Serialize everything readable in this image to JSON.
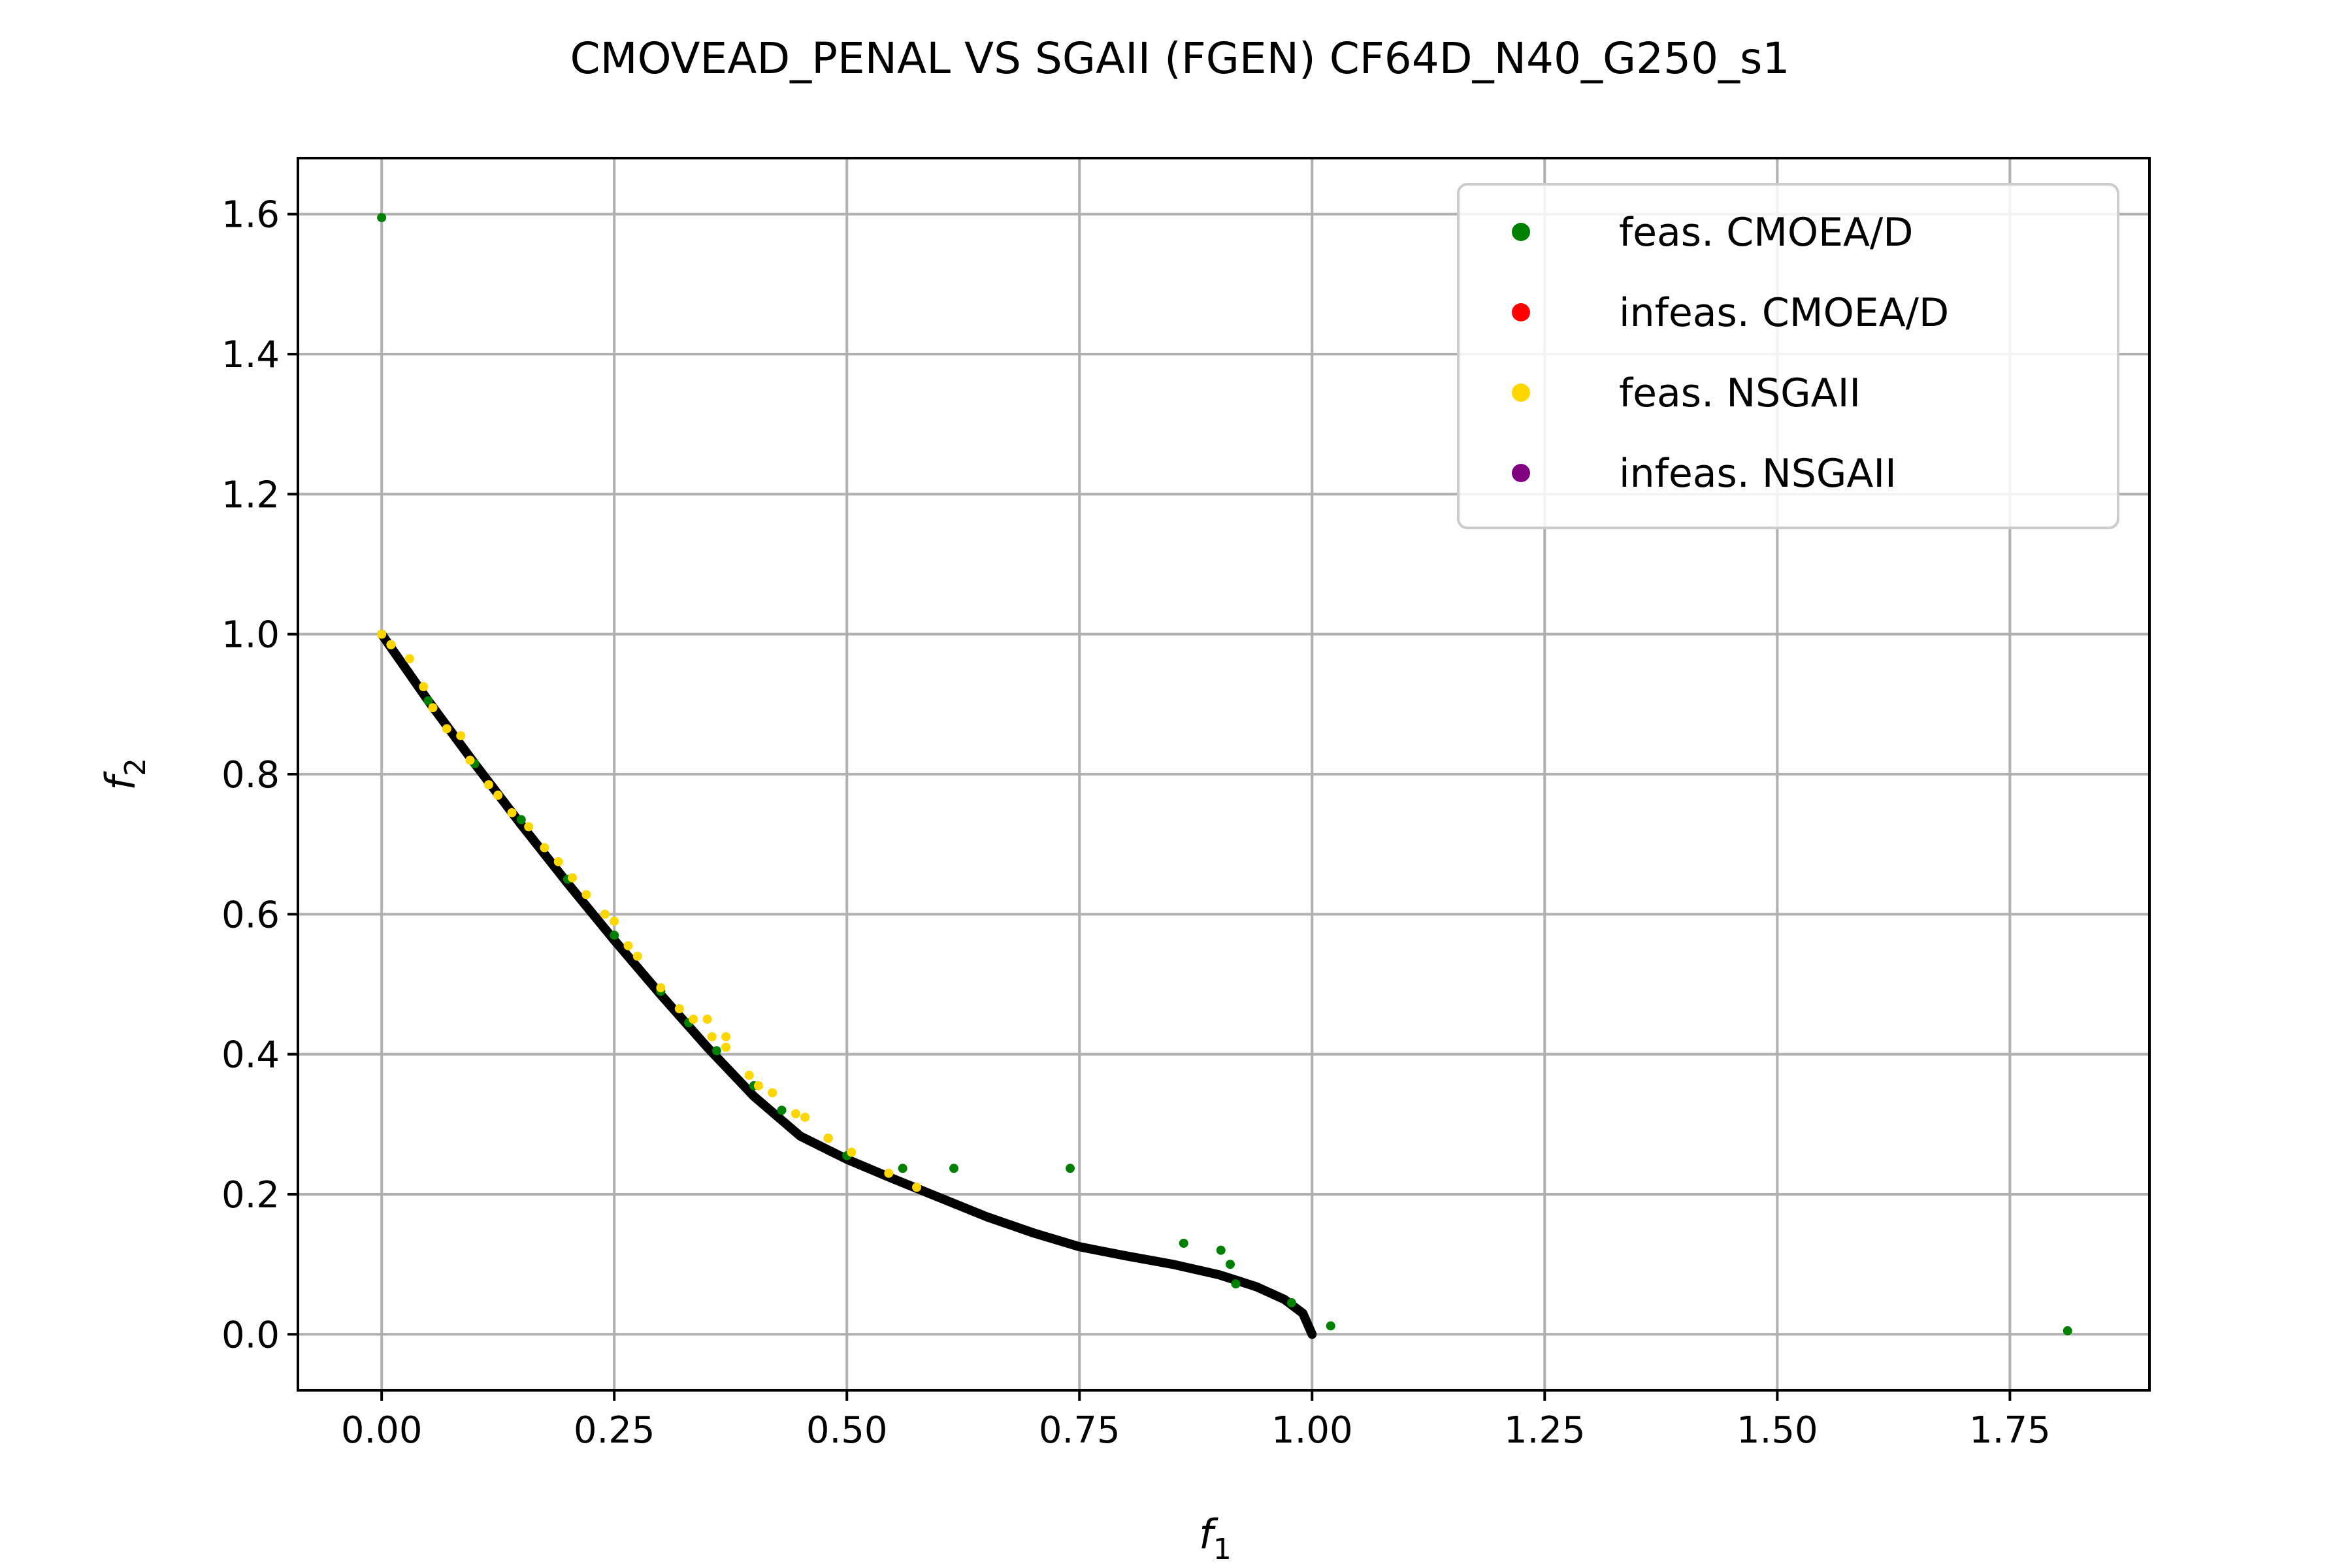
{
  "chart_data": {
    "type": "scatter",
    "title": "CMOVEAD_PENAL VS SGAII (FGEN) CF64D_N40_G250_s1",
    "xlabel": {
      "base": "f",
      "sub": "1"
    },
    "ylabel": {
      "base": "f",
      "sub": "2"
    },
    "xlim": [
      -0.09,
      1.9
    ],
    "ylim": [
      -0.08,
      1.68
    ],
    "grid": true,
    "legend_position": "top-right",
    "xticks": [
      0.0,
      0.25,
      0.5,
      0.75,
      1.0,
      1.25,
      1.5,
      1.75
    ],
    "xtick_labels": [
      "0.00",
      "0.25",
      "0.50",
      "0.75",
      "1.00",
      "1.25",
      "1.50",
      "1.75"
    ],
    "yticks": [
      0.0,
      0.2,
      0.4,
      0.6,
      0.8,
      1.0,
      1.2,
      1.4,
      1.6
    ],
    "ytick_labels": [
      "0.0",
      "0.2",
      "0.4",
      "0.6",
      "0.8",
      "1.0",
      "1.2",
      "1.4",
      "1.6"
    ],
    "true_front": {
      "color": "#000000",
      "points": [
        [
          0.0,
          1.0
        ],
        [
          0.05,
          0.905
        ],
        [
          0.1,
          0.815
        ],
        [
          0.15,
          0.728
        ],
        [
          0.2,
          0.644
        ],
        [
          0.25,
          0.563
        ],
        [
          0.3,
          0.485
        ],
        [
          0.35,
          0.41
        ],
        [
          0.4,
          0.34
        ],
        [
          0.45,
          0.283
        ],
        [
          0.5,
          0.25
        ],
        [
          0.55,
          0.222
        ],
        [
          0.6,
          0.195
        ],
        [
          0.65,
          0.168
        ],
        [
          0.7,
          0.145
        ],
        [
          0.75,
          0.125
        ],
        [
          0.8,
          0.112
        ],
        [
          0.85,
          0.1
        ],
        [
          0.9,
          0.085
        ],
        [
          0.94,
          0.068
        ],
        [
          0.97,
          0.05
        ],
        [
          0.99,
          0.03
        ],
        [
          1.0,
          0.0
        ]
      ]
    },
    "series": [
      {
        "name": "feas. CMOEA/D",
        "color": "#008000",
        "points": [
          [
            0.0,
            1.595
          ],
          [
            0.0,
            1.0
          ],
          [
            0.01,
            0.985
          ],
          [
            0.05,
            0.905
          ],
          [
            0.1,
            0.815
          ],
          [
            0.15,
            0.735
          ],
          [
            0.2,
            0.65
          ],
          [
            0.25,
            0.57
          ],
          [
            0.3,
            0.49
          ],
          [
            0.33,
            0.445
          ],
          [
            0.36,
            0.405
          ],
          [
            0.4,
            0.355
          ],
          [
            0.43,
            0.32
          ],
          [
            0.48,
            0.28
          ],
          [
            0.5,
            0.255
          ],
          [
            0.56,
            0.237
          ],
          [
            0.615,
            0.237
          ],
          [
            0.74,
            0.237
          ],
          [
            0.862,
            0.13
          ],
          [
            0.902,
            0.12
          ],
          [
            0.912,
            0.1
          ],
          [
            0.918,
            0.072
          ],
          [
            0.978,
            0.045
          ],
          [
            1.02,
            0.012
          ],
          [
            1.812,
            0.005
          ]
        ]
      },
      {
        "name": "infeas. CMOEA/D",
        "color": "#ff0000",
        "points": []
      },
      {
        "name": "feas. NSGAII",
        "color": "#ffd700",
        "points": [
          [
            0.0,
            1.0
          ],
          [
            0.01,
            0.985
          ],
          [
            0.03,
            0.965
          ],
          [
            0.045,
            0.925
          ],
          [
            0.055,
            0.895
          ],
          [
            0.07,
            0.865
          ],
          [
            0.085,
            0.855
          ],
          [
            0.095,
            0.82
          ],
          [
            0.115,
            0.785
          ],
          [
            0.125,
            0.77
          ],
          [
            0.14,
            0.745
          ],
          [
            0.158,
            0.725
          ],
          [
            0.175,
            0.695
          ],
          [
            0.19,
            0.675
          ],
          [
            0.205,
            0.652
          ],
          [
            0.22,
            0.628
          ],
          [
            0.24,
            0.6
          ],
          [
            0.25,
            0.59
          ],
          [
            0.265,
            0.555
          ],
          [
            0.275,
            0.54
          ],
          [
            0.3,
            0.495
          ],
          [
            0.32,
            0.465
          ],
          [
            0.335,
            0.45
          ],
          [
            0.35,
            0.45
          ],
          [
            0.355,
            0.425
          ],
          [
            0.37,
            0.41
          ],
          [
            0.37,
            0.425
          ],
          [
            0.395,
            0.37
          ],
          [
            0.405,
            0.355
          ],
          [
            0.42,
            0.345
          ],
          [
            0.445,
            0.315
          ],
          [
            0.455,
            0.31
          ],
          [
            0.48,
            0.28
          ],
          [
            0.505,
            0.26
          ],
          [
            0.545,
            0.23
          ],
          [
            0.575,
            0.21
          ]
        ]
      },
      {
        "name": "infeas. NSGAII",
        "color": "#800080",
        "points": []
      }
    ]
  }
}
